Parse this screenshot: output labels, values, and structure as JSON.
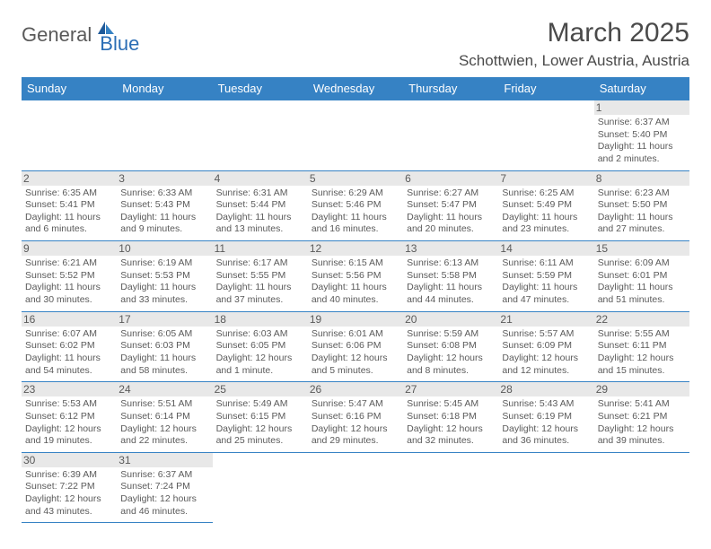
{
  "logo": {
    "general": "General",
    "blue": "Blue"
  },
  "title": "March 2025",
  "location": "Schottwien, Lower Austria, Austria",
  "header_bg": "#3682c4",
  "border_color": "#3682c4",
  "daynum_bg": "#e8e8e8",
  "text_color": "#5a5a5a",
  "days_of_week": [
    "Sunday",
    "Monday",
    "Tuesday",
    "Wednesday",
    "Thursday",
    "Friday",
    "Saturday"
  ],
  "first_weekday": 6,
  "days": [
    {
      "n": 1,
      "sr": "6:37 AM",
      "ss": "5:40 PM",
      "dl": "11 hours and 2 minutes."
    },
    {
      "n": 2,
      "sr": "6:35 AM",
      "ss": "5:41 PM",
      "dl": "11 hours and 6 minutes."
    },
    {
      "n": 3,
      "sr": "6:33 AM",
      "ss": "5:43 PM",
      "dl": "11 hours and 9 minutes."
    },
    {
      "n": 4,
      "sr": "6:31 AM",
      "ss": "5:44 PM",
      "dl": "11 hours and 13 minutes."
    },
    {
      "n": 5,
      "sr": "6:29 AM",
      "ss": "5:46 PM",
      "dl": "11 hours and 16 minutes."
    },
    {
      "n": 6,
      "sr": "6:27 AM",
      "ss": "5:47 PM",
      "dl": "11 hours and 20 minutes."
    },
    {
      "n": 7,
      "sr": "6:25 AM",
      "ss": "5:49 PM",
      "dl": "11 hours and 23 minutes."
    },
    {
      "n": 8,
      "sr": "6:23 AM",
      "ss": "5:50 PM",
      "dl": "11 hours and 27 minutes."
    },
    {
      "n": 9,
      "sr": "6:21 AM",
      "ss": "5:52 PM",
      "dl": "11 hours and 30 minutes."
    },
    {
      "n": 10,
      "sr": "6:19 AM",
      "ss": "5:53 PM",
      "dl": "11 hours and 33 minutes."
    },
    {
      "n": 11,
      "sr": "6:17 AM",
      "ss": "5:55 PM",
      "dl": "11 hours and 37 minutes."
    },
    {
      "n": 12,
      "sr": "6:15 AM",
      "ss": "5:56 PM",
      "dl": "11 hours and 40 minutes."
    },
    {
      "n": 13,
      "sr": "6:13 AM",
      "ss": "5:58 PM",
      "dl": "11 hours and 44 minutes."
    },
    {
      "n": 14,
      "sr": "6:11 AM",
      "ss": "5:59 PM",
      "dl": "11 hours and 47 minutes."
    },
    {
      "n": 15,
      "sr": "6:09 AM",
      "ss": "6:01 PM",
      "dl": "11 hours and 51 minutes."
    },
    {
      "n": 16,
      "sr": "6:07 AM",
      "ss": "6:02 PM",
      "dl": "11 hours and 54 minutes."
    },
    {
      "n": 17,
      "sr": "6:05 AM",
      "ss": "6:03 PM",
      "dl": "11 hours and 58 minutes."
    },
    {
      "n": 18,
      "sr": "6:03 AM",
      "ss": "6:05 PM",
      "dl": "12 hours and 1 minute."
    },
    {
      "n": 19,
      "sr": "6:01 AM",
      "ss": "6:06 PM",
      "dl": "12 hours and 5 minutes."
    },
    {
      "n": 20,
      "sr": "5:59 AM",
      "ss": "6:08 PM",
      "dl": "12 hours and 8 minutes."
    },
    {
      "n": 21,
      "sr": "5:57 AM",
      "ss": "6:09 PM",
      "dl": "12 hours and 12 minutes."
    },
    {
      "n": 22,
      "sr": "5:55 AM",
      "ss": "6:11 PM",
      "dl": "12 hours and 15 minutes."
    },
    {
      "n": 23,
      "sr": "5:53 AM",
      "ss": "6:12 PM",
      "dl": "12 hours and 19 minutes."
    },
    {
      "n": 24,
      "sr": "5:51 AM",
      "ss": "6:14 PM",
      "dl": "12 hours and 22 minutes."
    },
    {
      "n": 25,
      "sr": "5:49 AM",
      "ss": "6:15 PM",
      "dl": "12 hours and 25 minutes."
    },
    {
      "n": 26,
      "sr": "5:47 AM",
      "ss": "6:16 PM",
      "dl": "12 hours and 29 minutes."
    },
    {
      "n": 27,
      "sr": "5:45 AM",
      "ss": "6:18 PM",
      "dl": "12 hours and 32 minutes."
    },
    {
      "n": 28,
      "sr": "5:43 AM",
      "ss": "6:19 PM",
      "dl": "12 hours and 36 minutes."
    },
    {
      "n": 29,
      "sr": "5:41 AM",
      "ss": "6:21 PM",
      "dl": "12 hours and 39 minutes."
    },
    {
      "n": 30,
      "sr": "6:39 AM",
      "ss": "7:22 PM",
      "dl": "12 hours and 43 minutes."
    },
    {
      "n": 31,
      "sr": "6:37 AM",
      "ss": "7:24 PM",
      "dl": "12 hours and 46 minutes."
    }
  ],
  "labels": {
    "sunrise": "Sunrise:",
    "sunset": "Sunset:",
    "daylight": "Daylight:"
  }
}
